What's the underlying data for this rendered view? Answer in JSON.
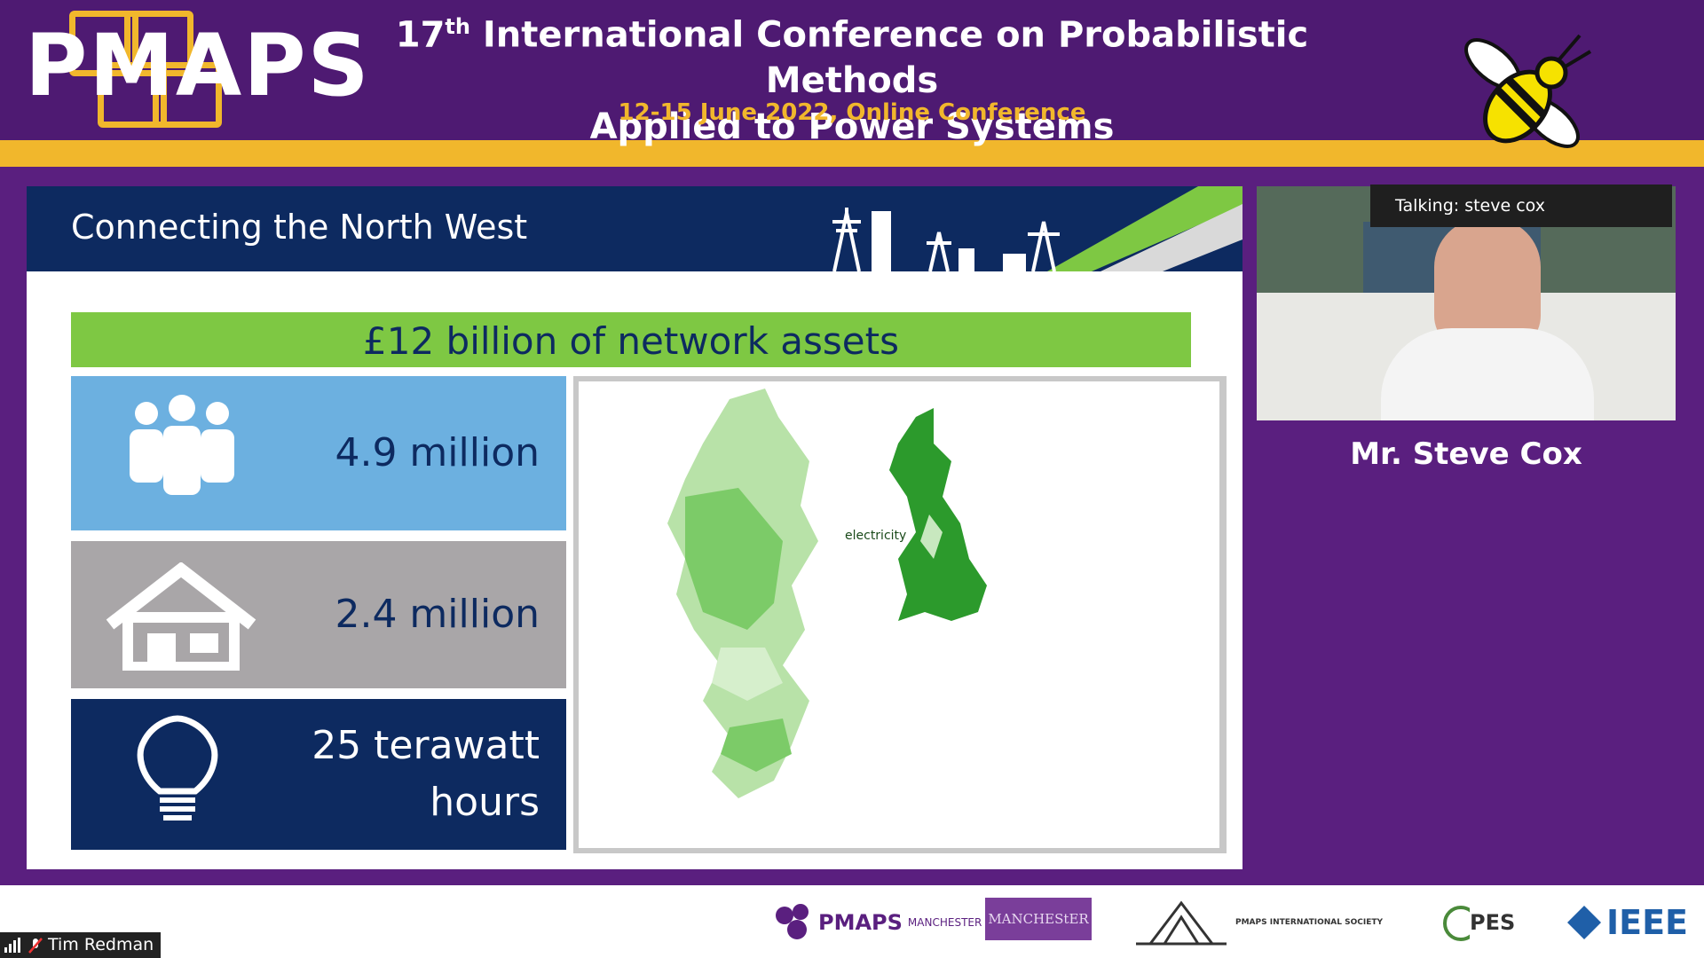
{
  "header": {
    "logo_text": "PMAPS",
    "title_line1_prefix": "17",
    "title_line1_sup": "th",
    "title_line1_rest": " International Conference on Probabilistic Methods",
    "title_line2": "Applied to Power Systems",
    "subtitle": "12-15 June 2022, Online Conference"
  },
  "slide": {
    "title": "Connecting the North West",
    "banner": "£12 billion of network assets",
    "stats": [
      {
        "icon": "people-icon",
        "value": "4.9 million"
      },
      {
        "icon": "house-icon",
        "value": "2.4 million"
      },
      {
        "icon": "lightbulb-icon",
        "value_line1": "25 terawatt",
        "value_line2": "hours"
      }
    ],
    "map_logo": "electricity"
  },
  "video": {
    "talking_label": "Talking: steve cox",
    "speaker_name": "Mr. Steve Cox"
  },
  "footer": {
    "participant_name": "Tim Redman",
    "logos": [
      "PMAPS",
      "MANCHESTER 2022",
      "MANCHEStER",
      "PMAPS INTERNATIONAL SOCIETY",
      "PES",
      "IEEE"
    ]
  },
  "colors": {
    "purple": "#4e1a72",
    "gold": "#f1b72c",
    "navy": "#0d2a60",
    "green": "#7ec843",
    "blue": "#6cb0e0",
    "grey": "#a9a6a8"
  }
}
